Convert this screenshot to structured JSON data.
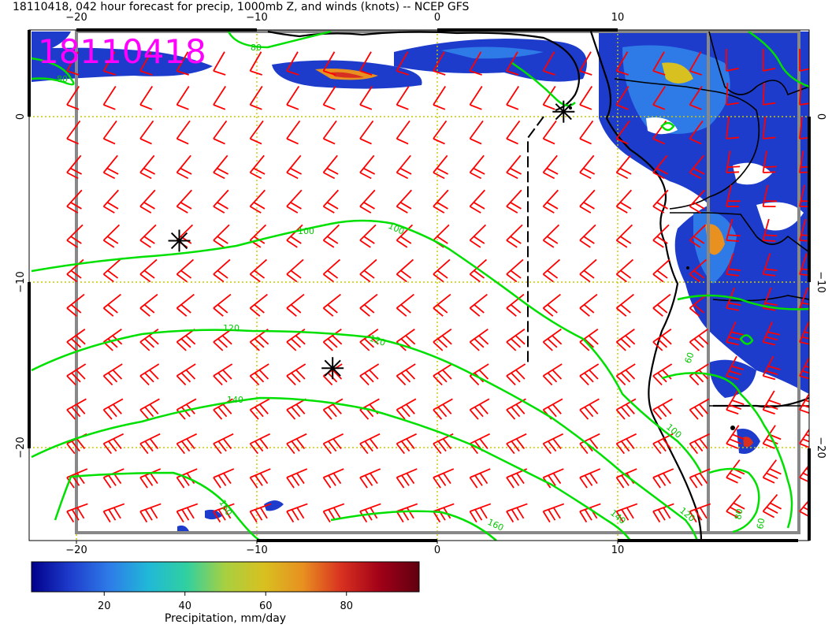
{
  "title": "18110418, 042 hour forecast for precip, 1000mb Z, and winds (knots) -- NCEP GFS",
  "stamp": "18110418",
  "colors": {
    "stamp": "#ff00ff",
    "contour": "#00e000",
    "barb": "#ff0000",
    "grid": "#c8c800",
    "coast": "#000000",
    "frame": "#888888"
  },
  "axes": {
    "lon_ticks": [
      {
        "value": -20,
        "label": "−20"
      },
      {
        "value": -10,
        "label": "−10"
      },
      {
        "value": 0,
        "label": "0"
      },
      {
        "value": 10,
        "label": "10"
      }
    ],
    "lat_ticks": [
      {
        "value": 0,
        "label": "0"
      },
      {
        "value": -10,
        "label": "−10"
      },
      {
        "value": -20,
        "label": "−20"
      }
    ]
  },
  "contours": [
    {
      "value": "100",
      "labels": [
        "100",
        "100",
        "100"
      ]
    },
    {
      "value": "120",
      "labels": [
        "120",
        "120",
        "120"
      ]
    },
    {
      "value": "140",
      "labels": [
        "140",
        "140"
      ]
    },
    {
      "value": "160",
      "labels": [
        "160",
        "160",
        "160"
      ]
    },
    {
      "value": "80",
      "labels": [
        "80",
        "80",
        "80"
      ]
    },
    {
      "value": "60",
      "labels": [
        "60",
        "60"
      ]
    }
  ],
  "markers": [
    {
      "name": "low-center",
      "lon": 7.0,
      "lat": 0.3
    },
    {
      "name": "high-center-1",
      "lon": -14.3,
      "lat": -7.5
    },
    {
      "name": "high-center-2",
      "lon": -5.8,
      "lat": -15.2
    }
  ],
  "colorbar": {
    "label": "Precipitation, mm/day",
    "ticks": [
      {
        "value": 20,
        "label": "20"
      },
      {
        "value": 40,
        "label": "40"
      },
      {
        "value": 60,
        "label": "60"
      },
      {
        "value": 80,
        "label": "80"
      }
    ],
    "min": 2,
    "max": 98,
    "stops": [
      "#00008b",
      "#1e3ccc",
      "#2e7be8",
      "#20b8d8",
      "#30d0a0",
      "#a8d040",
      "#d8c020",
      "#e89020",
      "#d83020",
      "#a00018",
      "#600010"
    ]
  }
}
